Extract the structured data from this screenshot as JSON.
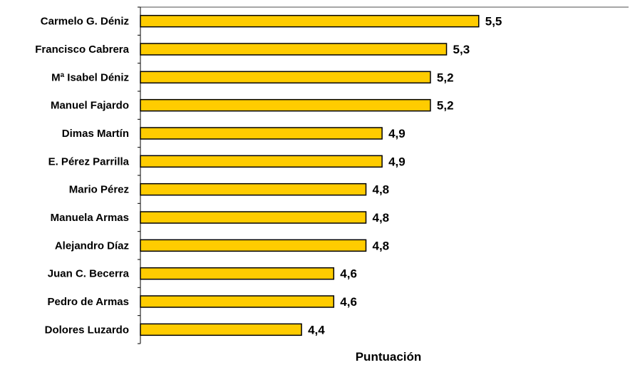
{
  "chart_data": {
    "type": "bar",
    "orientation": "horizontal",
    "categories": [
      "Carmelo G. Déniz",
      "Francisco Cabrera",
      "Mª Isabel Déniz",
      "Manuel Fajardo",
      "Dimas Martín",
      "E. Pérez Parrilla",
      "Mario Pérez",
      "Manuela Armas",
      "Alejandro Díaz",
      "Juan C. Becerra",
      "Pedro de Armas",
      "Dolores Luzardo"
    ],
    "values": [
      5.5,
      5.3,
      5.2,
      5.2,
      4.9,
      4.9,
      4.8,
      4.8,
      4.8,
      4.6,
      4.6,
      4.4
    ],
    "value_labels": [
      "5,5",
      "5,3",
      "5,2",
      "5,2",
      "4,9",
      "4,9",
      "4,8",
      "4,8",
      "4,8",
      "4,6",
      "4,6",
      "4,4"
    ],
    "title": "",
    "xlabel": "Puntuación",
    "ylabel": "",
    "xlim": [
      3.4,
      6.43
    ],
    "grid": false,
    "legend": "none",
    "bar_color": "#FFCC00",
    "bar_edge_color": "#000000"
  }
}
